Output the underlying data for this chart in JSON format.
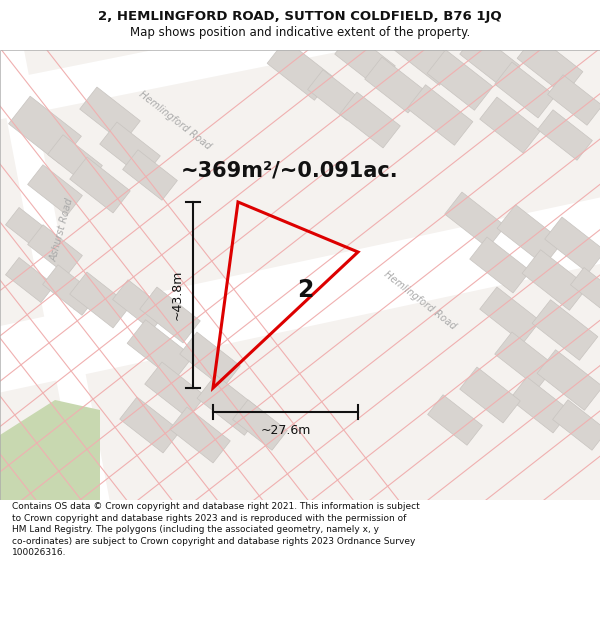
{
  "title_line1": "2, HEMLINGFORD ROAD, SUTTON COLDFIELD, B76 1JQ",
  "title_line2": "Map shows position and indicative extent of the property.",
  "area_text": "~369m²/~0.091ac.",
  "dim_height": "~43.8m",
  "dim_width": "~27.6m",
  "plot_number": "2",
  "footer_text": "Contains OS data © Crown copyright and database right 2021. This information is subject to Crown copyright and database rights 2023 and is reproduced with the permission of HM Land Registry. The polygons (including the associated geometry, namely x, y co-ordinates) are subject to Crown copyright and database rights 2023 Ordnance Survey 100026316.",
  "map_bg": "#f5f2ef",
  "red_polygon": "#dd0000",
  "dim_line_color": "#111111",
  "road_fill": "#e8e4e0",
  "block_fill": "#d8d4d0",
  "block_edge": "#c8c4c0",
  "pink_road": "#f0b0b0",
  "pink_road2": "#e89898",
  "green_fill": "#c8d8b0",
  "road_label": "#aaaaaa",
  "white": "#ffffff"
}
